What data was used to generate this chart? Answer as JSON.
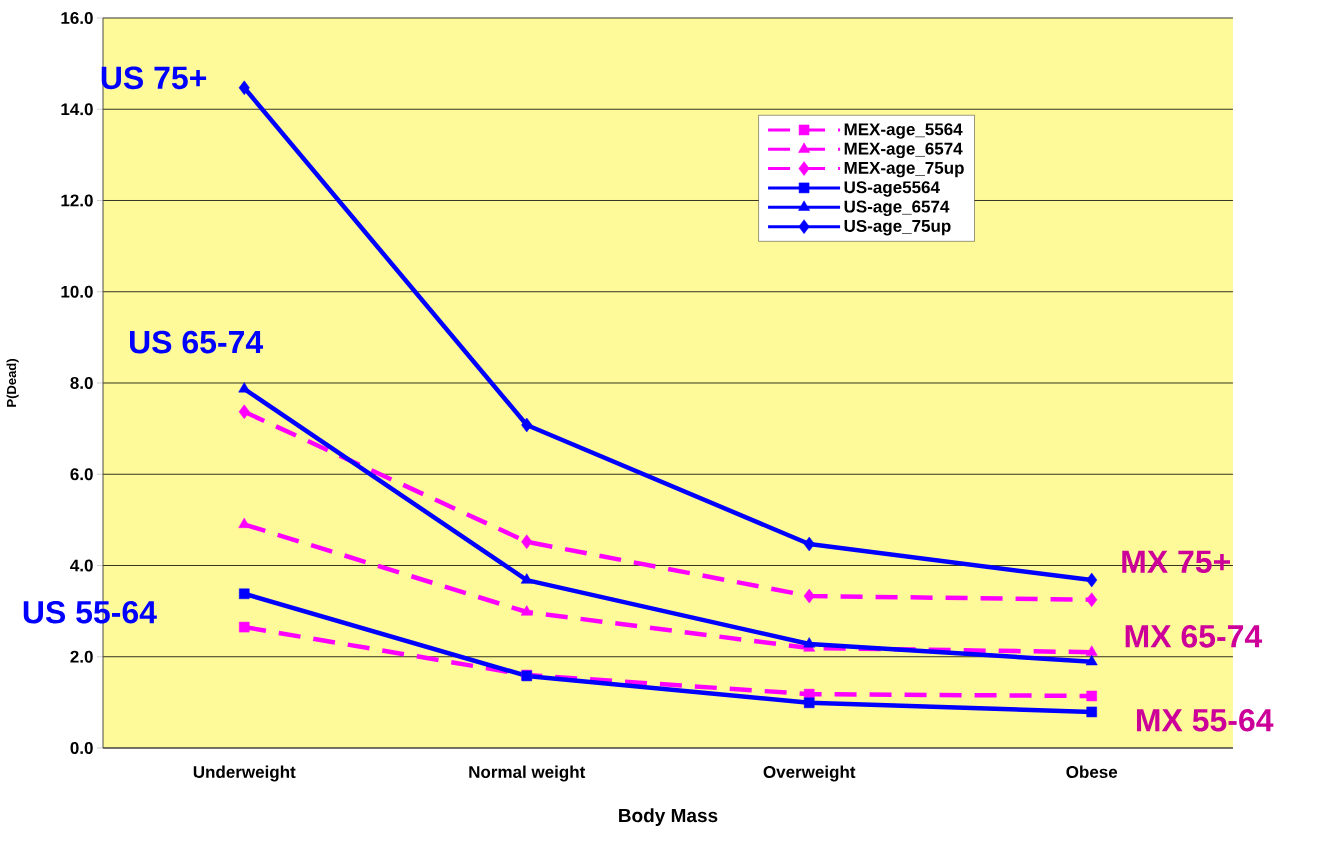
{
  "chart_data": {
    "type": "line",
    "xlabel": "Body Mass",
    "ylabel": "P(Dead)",
    "categories": [
      "Underweight",
      "Normal weight",
      "Overweight",
      "Obese"
    ],
    "series": [
      {
        "name": "MEX-age_5564",
        "color": "#ff00ff",
        "marker": "square",
        "line_style": "dashed",
        "values": [
          2.65,
          1.6,
          1.18,
          1.14
        ]
      },
      {
        "name": "MEX-age_6574",
        "color": "#ff00ff",
        "marker": "triangle",
        "line_style": "dashed",
        "values": [
          4.9,
          2.98,
          2.19,
          2.1
        ]
      },
      {
        "name": "MEX-age_75up",
        "color": "#ff00ff",
        "marker": "diamond",
        "line_style": "dashed",
        "values": [
          7.37,
          4.52,
          3.33,
          3.25
        ]
      },
      {
        "name": "US-age5564",
        "color": "#0000ff",
        "marker": "square",
        "line_style": "solid",
        "values": [
          3.38,
          1.58,
          0.99,
          0.79
        ]
      },
      {
        "name": "US-age_6574",
        "color": "#0000ff",
        "marker": "triangle",
        "line_style": "solid",
        "values": [
          7.87,
          3.68,
          2.28,
          1.89
        ]
      },
      {
        "name": "US-age_75up",
        "color": "#0000ff",
        "marker": "diamond",
        "line_style": "solid",
        "values": [
          14.47,
          7.08,
          4.47,
          3.68
        ]
      }
    ],
    "ylim": [
      0,
      16
    ],
    "yticks": [
      {
        "value": 0,
        "label": "0.0"
      },
      {
        "value": 2,
        "label": "2.0"
      },
      {
        "value": 4,
        "label": "4.0"
      },
      {
        "value": 6,
        "label": "6.0"
      },
      {
        "value": 8,
        "label": "8.0"
      },
      {
        "value": 10,
        "label": "10.0"
      },
      {
        "value": 12,
        "label": "12.0"
      },
      {
        "value": 14,
        "label": "14.0"
      },
      {
        "value": 16,
        "label": "16.0"
      }
    ],
    "grid": "y",
    "legend": "top right",
    "annotations": [
      "US 75+",
      "US 65-74",
      "US 55-64",
      "MX 75+",
      "MX 65-74",
      "MX 55-64"
    ]
  }
}
